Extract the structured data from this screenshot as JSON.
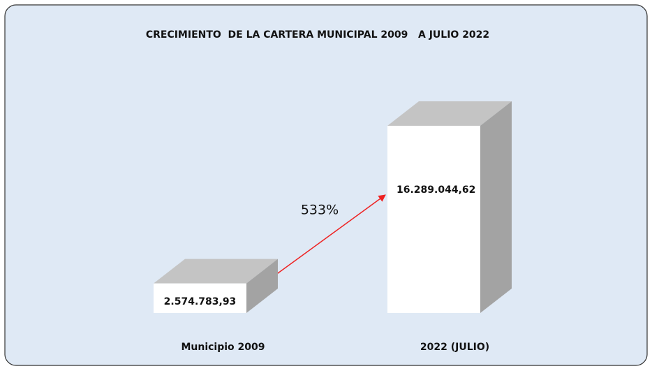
{
  "chart_data": {
    "type": "bar3d",
    "title": "CRECIMIENTO  DE LA CARTERA MUNICIPAL 2009   A JULIO 2022",
    "categories": [
      "Municipio 2009",
      "2022 (JULIO)"
    ],
    "values": [
      2574783.93,
      16289044.62
    ],
    "value_labels": [
      "2.574.783,93",
      "16.289.044,62"
    ],
    "annotation": "533%",
    "color": "#ffffff"
  }
}
